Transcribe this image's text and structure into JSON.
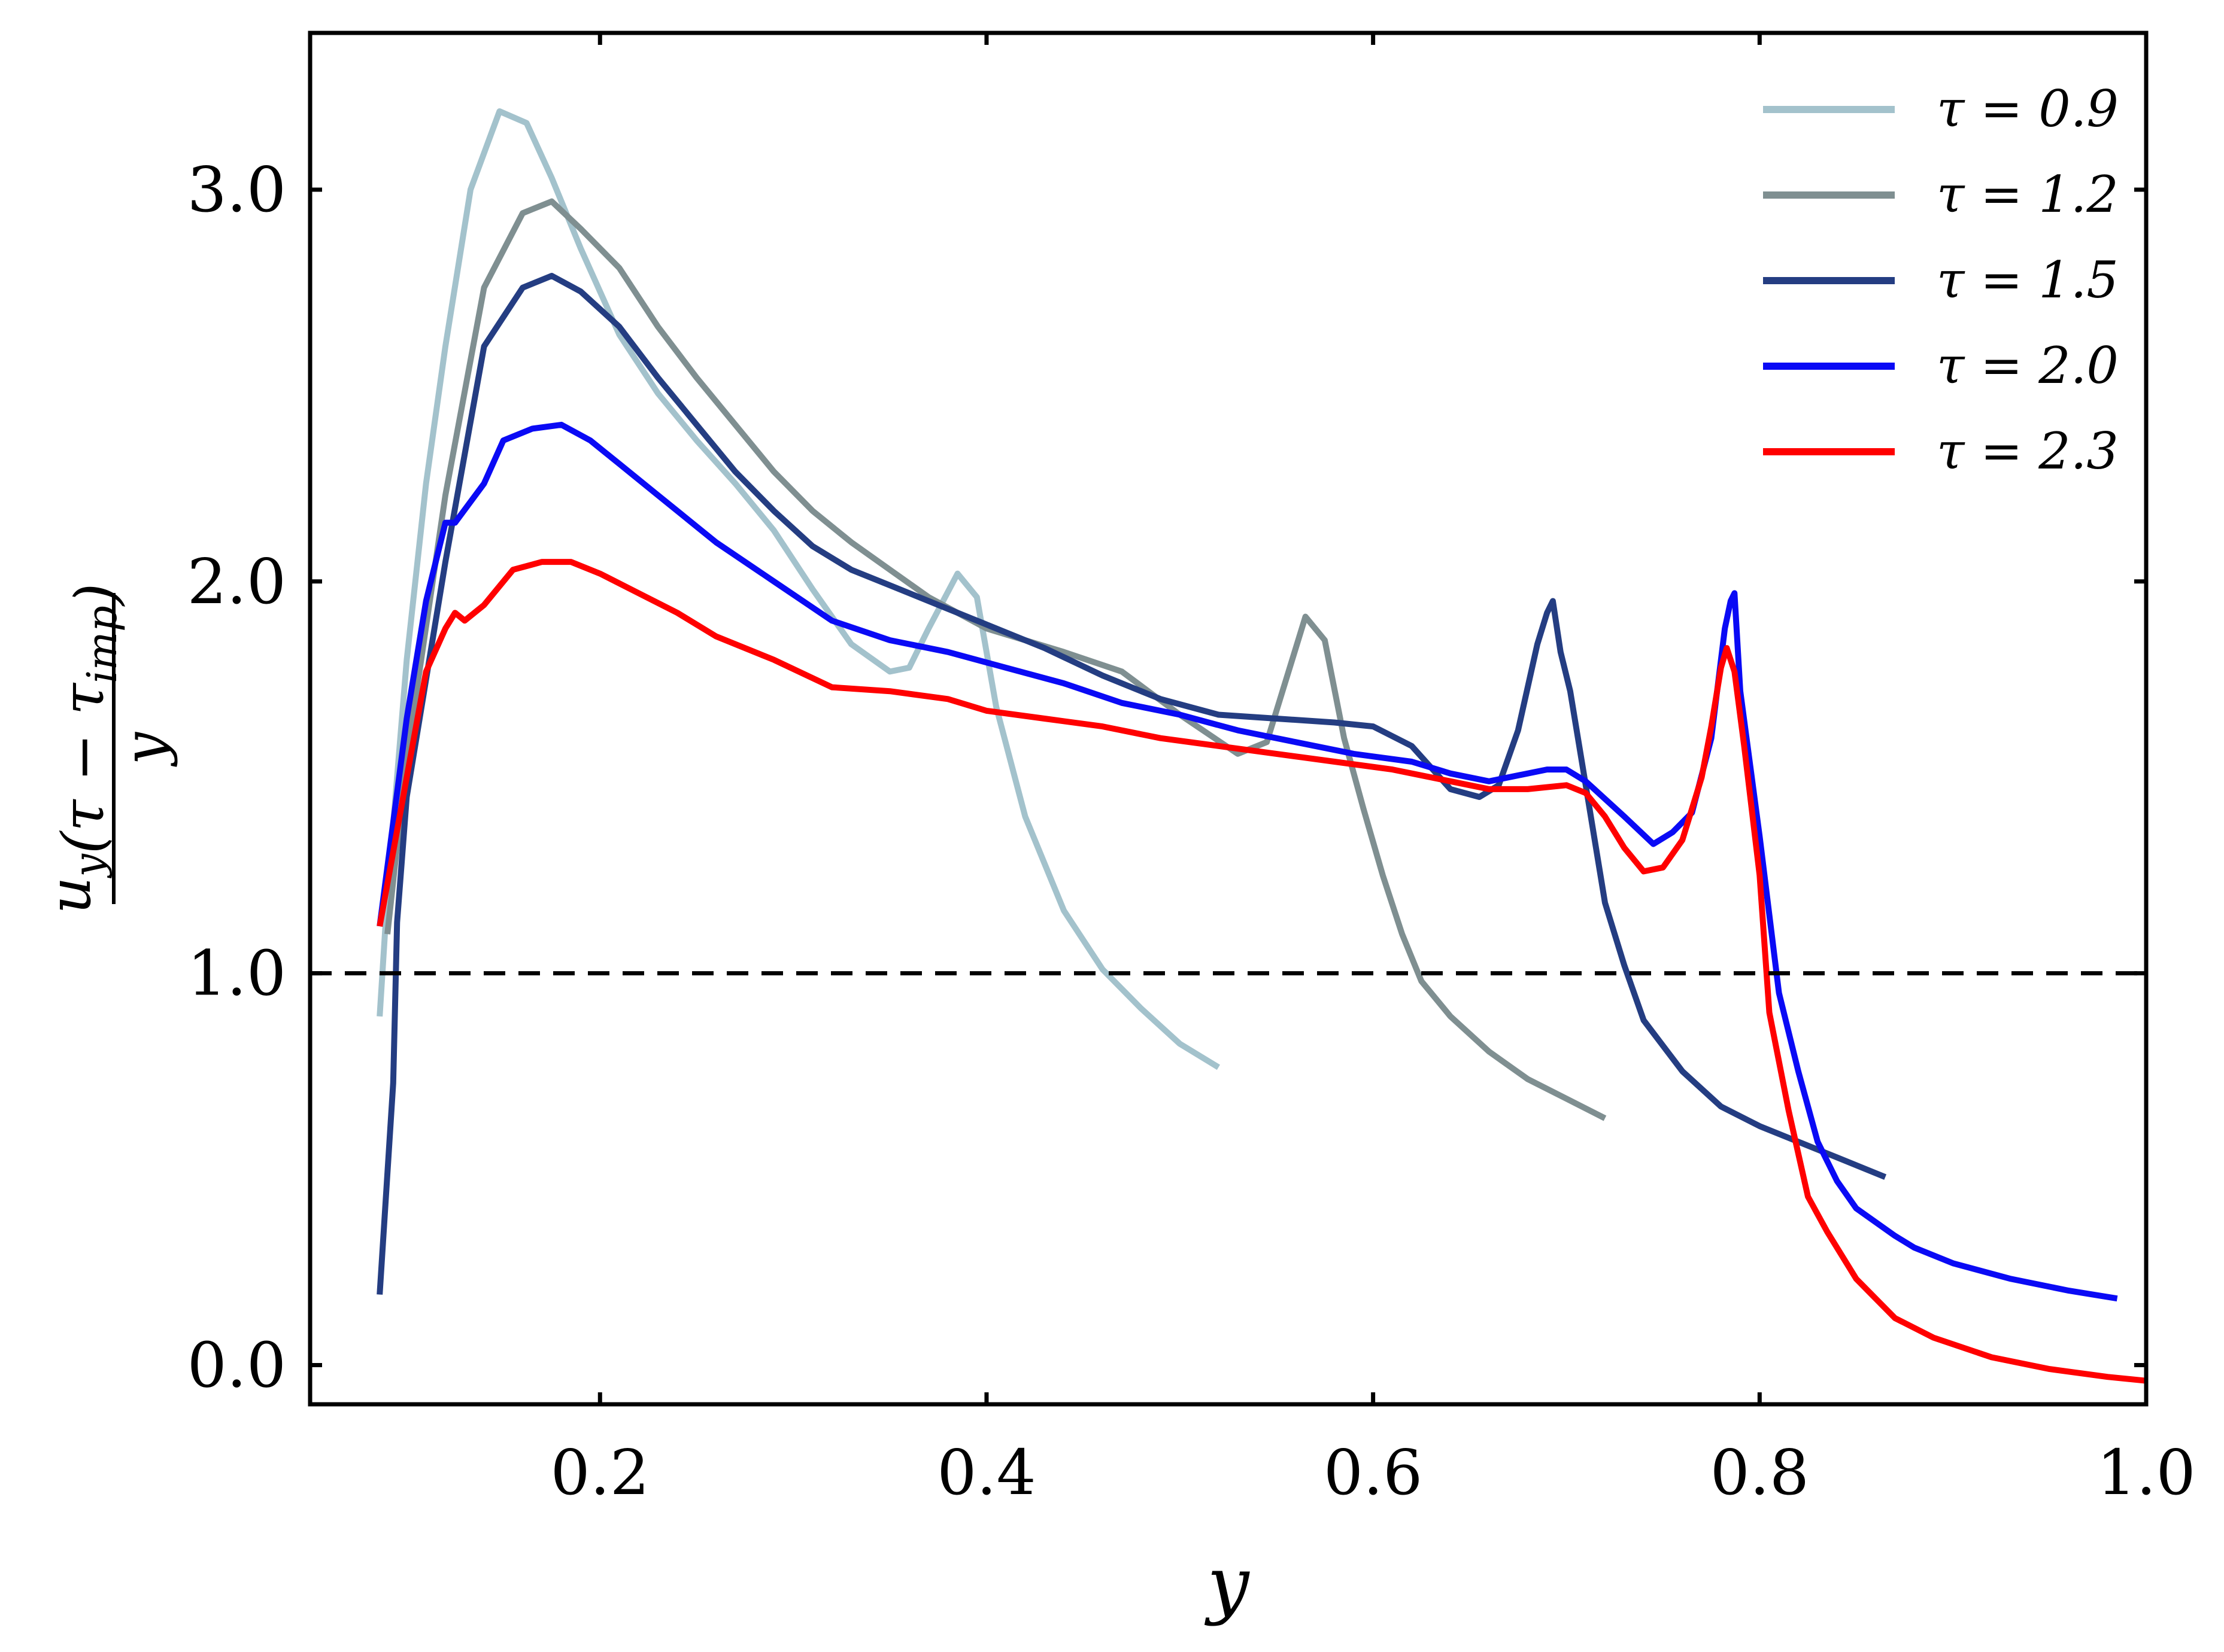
{
  "chart_data": {
    "type": "line",
    "xlabel": "y",
    "ylabel": {
      "numerator": "u_y(τ − τ_imp)",
      "denominator": "y"
    },
    "xlim": [
      0.05,
      1.0
    ],
    "ylim": [
      -0.1,
      3.4
    ],
    "xticks": [
      0.2,
      0.4,
      0.6,
      0.8,
      1.0
    ],
    "xtick_labels": [
      "0.2",
      "0.4",
      "0.6",
      "0.8",
      "1.0"
    ],
    "yticks": [
      0.0,
      1.0,
      2.0,
      3.0
    ],
    "ytick_labels": [
      "0.0",
      "1.0",
      "2.0",
      "3.0"
    ],
    "grid": false,
    "legend_position": "top-right",
    "reference_line": {
      "y": 1.0,
      "style": "dashed",
      "color": "#000000"
    },
    "series": [
      {
        "name": "τ = 0.9",
        "color": "#a3c2cc",
        "points": [
          [
            0.086,
            0.89
          ],
          [
            0.09,
            1.2
          ],
          [
            0.1,
            1.8
          ],
          [
            0.11,
            2.25
          ],
          [
            0.12,
            2.6
          ],
          [
            0.133,
            3.0
          ],
          [
            0.148,
            3.2
          ],
          [
            0.162,
            3.17
          ],
          [
            0.175,
            3.03
          ],
          [
            0.19,
            2.85
          ],
          [
            0.21,
            2.63
          ],
          [
            0.23,
            2.48
          ],
          [
            0.25,
            2.36
          ],
          [
            0.27,
            2.25
          ],
          [
            0.29,
            2.13
          ],
          [
            0.31,
            1.98
          ],
          [
            0.33,
            1.84
          ],
          [
            0.35,
            1.77
          ],
          [
            0.36,
            1.78
          ],
          [
            0.37,
            1.88
          ],
          [
            0.385,
            2.02
          ],
          [
            0.395,
            1.96
          ],
          [
            0.405,
            1.68
          ],
          [
            0.42,
            1.4
          ],
          [
            0.43,
            1.28
          ],
          [
            0.44,
            1.16
          ],
          [
            0.46,
            1.01
          ],
          [
            0.48,
            0.91
          ],
          [
            0.5,
            0.82
          ],
          [
            0.52,
            0.76
          ]
        ]
      },
      {
        "name": "τ = 1.2",
        "color": "#7f8f91",
        "points": [
          [
            0.09,
            1.1
          ],
          [
            0.1,
            1.55
          ],
          [
            0.12,
            2.22
          ],
          [
            0.14,
            2.75
          ],
          [
            0.16,
            2.94
          ],
          [
            0.175,
            2.97
          ],
          [
            0.19,
            2.9
          ],
          [
            0.21,
            2.8
          ],
          [
            0.23,
            2.65
          ],
          [
            0.25,
            2.52
          ],
          [
            0.27,
            2.4
          ],
          [
            0.29,
            2.28
          ],
          [
            0.31,
            2.18
          ],
          [
            0.33,
            2.1
          ],
          [
            0.35,
            2.03
          ],
          [
            0.37,
            1.96
          ],
          [
            0.4,
            1.88
          ],
          [
            0.44,
            1.82
          ],
          [
            0.47,
            1.77
          ],
          [
            0.5,
            1.66
          ],
          [
            0.53,
            1.56
          ],
          [
            0.545,
            1.59
          ],
          [
            0.56,
            1.83
          ],
          [
            0.565,
            1.91
          ],
          [
            0.575,
            1.85
          ],
          [
            0.585,
            1.6
          ],
          [
            0.595,
            1.42
          ],
          [
            0.605,
            1.25
          ],
          [
            0.615,
            1.1
          ],
          [
            0.625,
            0.98
          ],
          [
            0.64,
            0.89
          ],
          [
            0.66,
            0.8
          ],
          [
            0.68,
            0.73
          ],
          [
            0.7,
            0.68
          ],
          [
            0.72,
            0.63
          ]
        ]
      },
      {
        "name": "τ = 1.5",
        "color": "#243d82",
        "points": [
          [
            0.086,
            0.18
          ],
          [
            0.093,
            0.72
          ],
          [
            0.095,
            1.13
          ],
          [
            0.1,
            1.45
          ],
          [
            0.12,
            2.05
          ],
          [
            0.14,
            2.6
          ],
          [
            0.16,
            2.75
          ],
          [
            0.175,
            2.78
          ],
          [
            0.19,
            2.74
          ],
          [
            0.21,
            2.65
          ],
          [
            0.23,
            2.52
          ],
          [
            0.25,
            2.4
          ],
          [
            0.27,
            2.28
          ],
          [
            0.29,
            2.18
          ],
          [
            0.31,
            2.09
          ],
          [
            0.33,
            2.03
          ],
          [
            0.35,
            1.99
          ],
          [
            0.37,
            1.95
          ],
          [
            0.4,
            1.89
          ],
          [
            0.43,
            1.83
          ],
          [
            0.46,
            1.76
          ],
          [
            0.49,
            1.7
          ],
          [
            0.52,
            1.66
          ],
          [
            0.55,
            1.65
          ],
          [
            0.58,
            1.64
          ],
          [
            0.6,
            1.63
          ],
          [
            0.62,
            1.58
          ],
          [
            0.64,
            1.47
          ],
          [
            0.655,
            1.45
          ],
          [
            0.665,
            1.48
          ],
          [
            0.675,
            1.62
          ],
          [
            0.685,
            1.84
          ],
          [
            0.69,
            1.92
          ],
          [
            0.693,
            1.95
          ],
          [
            0.697,
            1.82
          ],
          [
            0.702,
            1.72
          ],
          [
            0.71,
            1.48
          ],
          [
            0.72,
            1.18
          ],
          [
            0.73,
            1.02
          ],
          [
            0.74,
            0.88
          ],
          [
            0.76,
            0.75
          ],
          [
            0.78,
            0.66
          ],
          [
            0.8,
            0.61
          ],
          [
            0.82,
            0.57
          ],
          [
            0.84,
            0.53
          ],
          [
            0.865,
            0.48
          ]
        ]
      },
      {
        "name": "τ = 2.0",
        "color": "#0a0af5",
        "points": [
          [
            0.086,
            1.12
          ],
          [
            0.1,
            1.65
          ],
          [
            0.11,
            1.95
          ],
          [
            0.12,
            2.15
          ],
          [
            0.125,
            2.15
          ],
          [
            0.14,
            2.25
          ],
          [
            0.15,
            2.36
          ],
          [
            0.165,
            2.39
          ],
          [
            0.18,
            2.4
          ],
          [
            0.195,
            2.36
          ],
          [
            0.21,
            2.3
          ],
          [
            0.23,
            2.22
          ],
          [
            0.26,
            2.1
          ],
          [
            0.29,
            2.0
          ],
          [
            0.32,
            1.9
          ],
          [
            0.35,
            1.85
          ],
          [
            0.38,
            1.82
          ],
          [
            0.41,
            1.78
          ],
          [
            0.44,
            1.74
          ],
          [
            0.47,
            1.69
          ],
          [
            0.5,
            1.66
          ],
          [
            0.53,
            1.62
          ],
          [
            0.56,
            1.59
          ],
          [
            0.59,
            1.56
          ],
          [
            0.62,
            1.54
          ],
          [
            0.64,
            1.51
          ],
          [
            0.66,
            1.49
          ],
          [
            0.69,
            1.52
          ],
          [
            0.7,
            1.52
          ],
          [
            0.71,
            1.49
          ],
          [
            0.73,
            1.4
          ],
          [
            0.745,
            1.33
          ],
          [
            0.755,
            1.36
          ],
          [
            0.765,
            1.41
          ],
          [
            0.775,
            1.6
          ],
          [
            0.782,
            1.88
          ],
          [
            0.785,
            1.95
          ],
          [
            0.787,
            1.97
          ],
          [
            0.79,
            1.72
          ],
          [
            0.8,
            1.35
          ],
          [
            0.81,
            0.95
          ],
          [
            0.82,
            0.75
          ],
          [
            0.83,
            0.57
          ],
          [
            0.84,
            0.47
          ],
          [
            0.85,
            0.4
          ],
          [
            0.87,
            0.33
          ],
          [
            0.88,
            0.3
          ],
          [
            0.9,
            0.26
          ],
          [
            0.93,
            0.22
          ],
          [
            0.96,
            0.19
          ],
          [
            0.985,
            0.17
          ]
        ]
      },
      {
        "name": "τ = 2.3",
        "color": "#ff0000",
        "points": [
          [
            0.086,
            1.12
          ],
          [
            0.1,
            1.5
          ],
          [
            0.11,
            1.77
          ],
          [
            0.12,
            1.88
          ],
          [
            0.125,
            1.92
          ],
          [
            0.13,
            1.9
          ],
          [
            0.14,
            1.94
          ],
          [
            0.155,
            2.03
          ],
          [
            0.17,
            2.05
          ],
          [
            0.185,
            2.05
          ],
          [
            0.2,
            2.02
          ],
          [
            0.22,
            1.97
          ],
          [
            0.24,
            1.92
          ],
          [
            0.26,
            1.86
          ],
          [
            0.29,
            1.8
          ],
          [
            0.32,
            1.73
          ],
          [
            0.35,
            1.72
          ],
          [
            0.38,
            1.7
          ],
          [
            0.4,
            1.67
          ],
          [
            0.43,
            1.65
          ],
          [
            0.46,
            1.63
          ],
          [
            0.49,
            1.6
          ],
          [
            0.52,
            1.58
          ],
          [
            0.55,
            1.56
          ],
          [
            0.58,
            1.54
          ],
          [
            0.61,
            1.52
          ],
          [
            0.64,
            1.49
          ],
          [
            0.66,
            1.47
          ],
          [
            0.68,
            1.47
          ],
          [
            0.7,
            1.48
          ],
          [
            0.71,
            1.46
          ],
          [
            0.72,
            1.4
          ],
          [
            0.73,
            1.32
          ],
          [
            0.74,
            1.26
          ],
          [
            0.75,
            1.27
          ],
          [
            0.76,
            1.34
          ],
          [
            0.77,
            1.5
          ],
          [
            0.775,
            1.63
          ],
          [
            0.78,
            1.78
          ],
          [
            0.783,
            1.83
          ],
          [
            0.787,
            1.77
          ],
          [
            0.792,
            1.58
          ],
          [
            0.8,
            1.25
          ],
          [
            0.805,
            0.9
          ],
          [
            0.815,
            0.65
          ],
          [
            0.825,
            0.43
          ],
          [
            0.835,
            0.34
          ],
          [
            0.85,
            0.22
          ],
          [
            0.87,
            0.12
          ],
          [
            0.89,
            0.07
          ],
          [
            0.92,
            0.02
          ],
          [
            0.95,
            -0.01
          ],
          [
            0.98,
            -0.03
          ],
          [
            1.0,
            -0.04
          ]
        ]
      }
    ]
  }
}
